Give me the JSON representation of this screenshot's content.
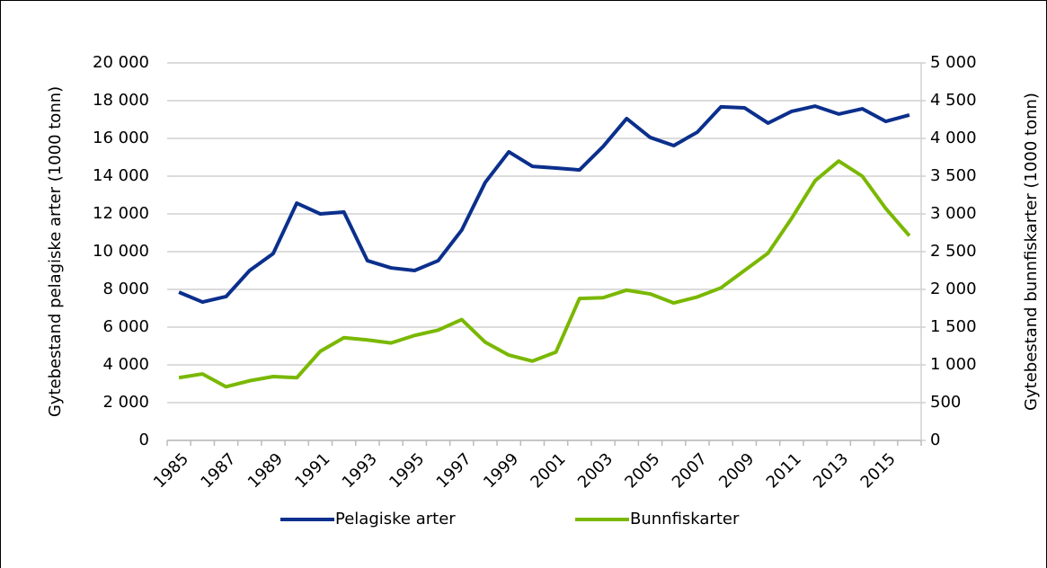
{
  "chart_data": {
    "type": "line",
    "categories": [
      "1985",
      null,
      "1987",
      null,
      "1989",
      null,
      "1991",
      null,
      "1993",
      null,
      "1995",
      null,
      "1997",
      null,
      "1999",
      null,
      "2001",
      null,
      "2003",
      null,
      "2005",
      null,
      "2007",
      null,
      "2009",
      null,
      "2011",
      null,
      "2013",
      null,
      "2015",
      null
    ],
    "series": [
      {
        "name": "Pelagiske arter",
        "color": "#0b2f8c",
        "values": [
          7850,
          7330,
          7620,
          9000,
          9900,
          12570,
          12000,
          12100,
          9520,
          9140,
          9000,
          9520,
          11140,
          13670,
          15290,
          14520,
          14430,
          14330,
          15570,
          17050,
          16050,
          15620,
          16330,
          17670,
          17620,
          16810,
          17430,
          17710,
          17290,
          17570,
          16900,
          17240
        ]
      },
      {
        "name": "Bunnfiskarter",
        "color": "#7ab800",
        "axis": "y2",
        "values": [
          830,
          880,
          710,
          790,
          845,
          830,
          1180,
          1360,
          1330,
          1290,
          1390,
          1460,
          1600,
          1300,
          1130,
          1050,
          1170,
          1880,
          1890,
          1990,
          1940,
          1820,
          1900,
          2020,
          2250,
          2480,
          2940,
          3440,
          3700,
          3500,
          3070,
          2710
        ]
      }
    ],
    "ylabel": "Gytebestand pelagiske arter (1000 tonn)",
    "y2label": "Gytebestand bunnfiskarter (1000 tonn)",
    "ylim": [
      0,
      20000
    ],
    "yticks": [
      0,
      {
        "value": 2000,
        "label": "2 000"
      },
      {
        "value": 4000,
        "label": "4 000"
      },
      {
        "value": 6000,
        "label": "6 000"
      },
      {
        "value": 8000,
        "label": "8 000"
      },
      {
        "value": 10000,
        "label": "10 000"
      },
      {
        "value": 12000,
        "label": "12 000"
      },
      {
        "value": 14000,
        "label": "14 000"
      },
      {
        "value": 16000,
        "label": "16 000"
      },
      {
        "value": 18000,
        "label": "18 000"
      },
      {
        "value": 20000,
        "label": "20 000"
      }
    ],
    "y2lim": [
      0,
      5000
    ],
    "y2ticks": [
      0,
      500,
      {
        "value": 1000,
        "label": "1 000"
      },
      {
        "value": 1500,
        "label": "1 500"
      },
      {
        "value": 2000,
        "label": "2 000"
      },
      {
        "value": 2500,
        "label": "2 500"
      },
      {
        "value": 3000,
        "label": "3 000"
      },
      {
        "value": 3500,
        "label": "3 500"
      },
      {
        "value": 4000,
        "label": "4 000"
      },
      {
        "value": 4500,
        "label": "4 500"
      },
      {
        "value": 5000,
        "label": "5 000"
      }
    ],
    "grid": true,
    "legend": "bottom"
  }
}
